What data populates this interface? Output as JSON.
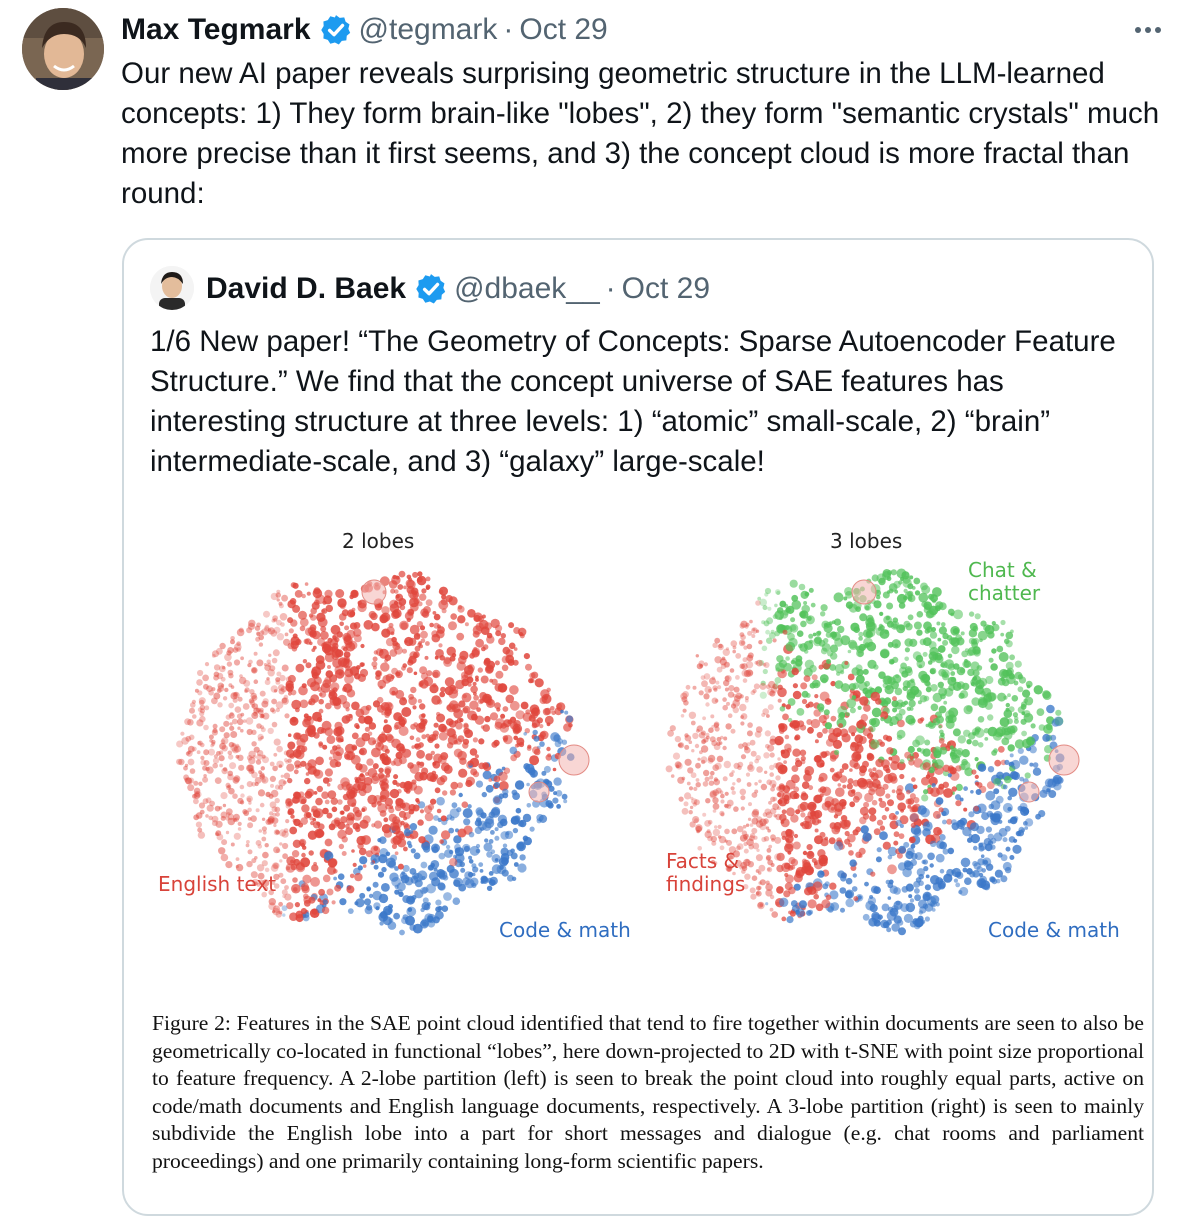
{
  "tweet": {
    "author_name": "Max Tegmark",
    "handle": "@tegmark",
    "separator": "·",
    "date": "Oct 29",
    "more_icon": "more-horizontal-icon",
    "text": "Our new AI paper reveals surprising geometric structure in the LLM-learned concepts: 1) They form brain-like \"lobes\", 2) they form \"semantic crystals\" much more precise than it first seems, and 3) the concept cloud is more fractal than round:"
  },
  "quote": {
    "author_name": "David D. Baek",
    "handle": "@dbaek__",
    "separator": "·",
    "date": "Oct 29",
    "text": "1/6 New paper! “The Geometry of Concepts: Sparse Autoencoder Feature Structure.” We find that the concept universe of SAE features has interesting structure at three levels: 1) “atomic” small-scale, 2) “brain” intermediate-scale, and 3) “galaxy” large-scale!"
  },
  "figure": {
    "left_title": "2 lobes",
    "right_title": "3 lobes",
    "left_labels": {
      "english": "English text",
      "code": "Code & math"
    },
    "right_labels": {
      "chat_line1": "Chat &",
      "chat_line2": "chatter",
      "facts_line1": "Facts &",
      "facts_line2": "findings",
      "code": "Code & math"
    },
    "caption": "Figure 2:  Features in the SAE point cloud identified that tend to fire together within documents are seen to also be geometrically co-located in functional “lobes”, here down-projected to 2D with t-SNE with point size proportional to feature frequency.  A 2-lobe partition (left) is seen to break the point cloud into roughly equal parts, active on code/math documents and English language documents, respectively.  A 3-lobe partition (right) is seen to mainly subdivide the English lobe into a part for short messages and dialogue (e.g. chat rooms and parliament proceedings) and one primarily containing long-form scientific papers."
  },
  "colors": {
    "red": "#e0463c",
    "blue": "#3b78c9",
    "green": "#52c25a",
    "verified": "#1d9bf0"
  }
}
